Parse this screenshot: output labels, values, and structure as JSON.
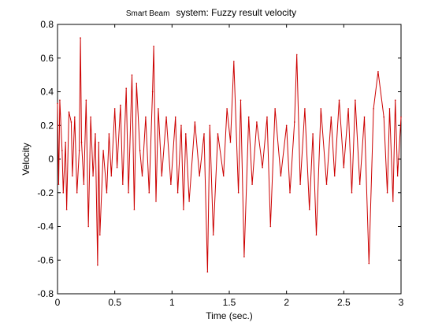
{
  "chart_data": {
    "type": "line",
    "title_prefix": "Smart Beam",
    "title_main": "system: Fuzzy result velocity",
    "xlabel": "Time (sec.)",
    "ylabel": "Velocity",
    "xlim": [
      0,
      3
    ],
    "ylim": [
      -0.8,
      0.8
    ],
    "x_ticks": [
      0,
      0.5,
      1,
      1.5,
      2,
      2.5,
      3
    ],
    "x_tick_labels": [
      "0",
      "0.5",
      "1",
      "1.5",
      "2",
      "2.5",
      "3"
    ],
    "y_ticks": [
      -0.8,
      -0.6,
      -0.4,
      -0.2,
      0,
      0.2,
      0.4,
      0.6,
      0.8
    ],
    "y_tick_labels": [
      "-0.8",
      "-0.6",
      "-0.4",
      "-0.2",
      "0",
      "0.2",
      "0.4",
      "0.6",
      "0.8"
    ],
    "grid": false,
    "line_color": "#cc0000",
    "series": [
      {
        "x": [
          0,
          0.01,
          0.02,
          0.04,
          0.05,
          0.07,
          0.08,
          0.1,
          0.12,
          0.13,
          0.15,
          0.17,
          0.19,
          0.2,
          0.21,
          0.23,
          0.25,
          0.27,
          0.29,
          0.31,
          0.33,
          0.35,
          0.36,
          0.37,
          0.4,
          0.43,
          0.45,
          0.47,
          0.5,
          0.52,
          0.55,
          0.57,
          0.6,
          0.62,
          0.65,
          0.67,
          0.69,
          0.72,
          0.74,
          0.77,
          0.8,
          0.83,
          0.84,
          0.86,
          0.88,
          0.91,
          0.95,
          0.99,
          1.03,
          1.05,
          1.08,
          1.1,
          1.12,
          1.15,
          1.2,
          1.24,
          1.28,
          1.31,
          1.33,
          1.36,
          1.4,
          1.45,
          1.48,
          1.51,
          1.54,
          1.58,
          1.6,
          1.63,
          1.67,
          1.7,
          1.74,
          1.79,
          1.83,
          1.86,
          1.9,
          1.95,
          2,
          2.03,
          2.07,
          2.09,
          2.12,
          2.16,
          2.2,
          2.23,
          2.26,
          2.3,
          2.35,
          2.39,
          2.42,
          2.46,
          2.5,
          2.54,
          2.57,
          2.6,
          2.64,
          2.68,
          2.72,
          2.76,
          2.8,
          2.85,
          2.88,
          2.9,
          2.93,
          2.95,
          2.97,
          3
        ],
        "y": [
          0.33,
          -0.15,
          0.35,
          0.05,
          -0.2,
          0.1,
          -0.3,
          0.28,
          0.22,
          -0.1,
          0.25,
          -0.2,
          0.05,
          0.72,
          0.1,
          -0.15,
          0.35,
          -0.4,
          0.25,
          -0.1,
          0.15,
          -0.63,
          0.1,
          -0.45,
          0.05,
          -0.2,
          0.15,
          -0.1,
          0.3,
          -0.05,
          0.32,
          -0.15,
          0.42,
          -0.2,
          0.5,
          -0.3,
          0.45,
          0.05,
          -0.1,
          0.25,
          -0.2,
          0.4,
          0.67,
          -0.25,
          0.3,
          -0.1,
          0.25,
          -0.15,
          0.25,
          -0.2,
          0.2,
          -0.3,
          0.15,
          -0.25,
          0.22,
          -0.1,
          0.15,
          -0.67,
          0.2,
          -0.45,
          0.15,
          -0.1,
          0.3,
          0.1,
          0.58,
          -0.2,
          0.35,
          -0.58,
          0.25,
          -0.15,
          0.22,
          -0.05,
          0.25,
          -0.4,
          0.3,
          -0.1,
          0.2,
          -0.2,
          0.22,
          0.62,
          -0.15,
          0.3,
          -0.3,
          0.15,
          -0.45,
          0.3,
          -0.15,
          0.25,
          -0.1,
          0.35,
          -0.05,
          0.3,
          -0.2,
          0.35,
          -0.15,
          0.25,
          -0.62,
          0.3,
          0.52,
          0.25,
          -0.2,
          0.3,
          -0.25,
          0.35,
          -0.1,
          0.25
        ]
      }
    ]
  }
}
